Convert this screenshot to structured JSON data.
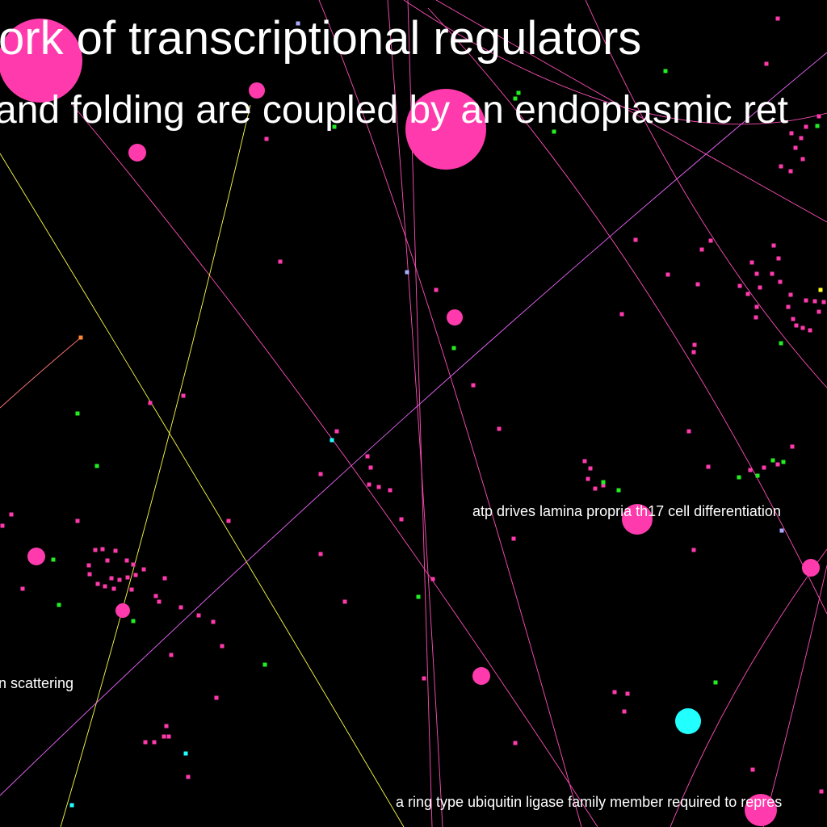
{
  "labels": {
    "title_fragment": "ork of transcriptional regulators",
    "subtitle_fragment": "and folding are coupled by an endoplasmic ret",
    "atp_label": "atp drives lamina propria th17 cell differentiation",
    "scattering_label": "n scattering",
    "ring_label": "a ring type ubiquitin ligase family member required to repres"
  },
  "colors": {
    "background": "#000000",
    "node_pink": "#ff3aad",
    "node_green": "#22ee22",
    "node_cyan": "#22ffff",
    "node_lavender": "#aaaaff",
    "node_orange": "#ff8833",
    "node_yellow": "#ffff22",
    "edge_pink": "#ff4fb8",
    "edge_yellow": "#ffff44",
    "edge_violet": "#ee66ff",
    "edge_salmon": "#ff7777",
    "label_text": "#ffffff"
  }
}
